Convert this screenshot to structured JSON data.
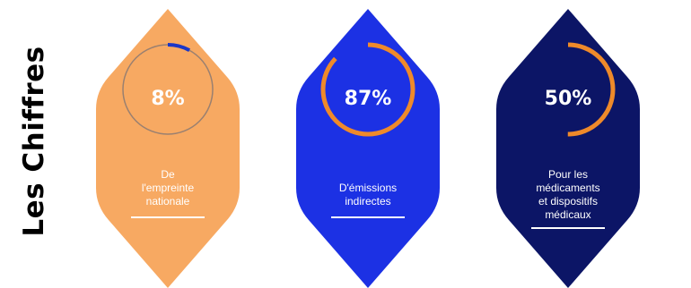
{
  "title": "Les Chiffres",
  "stats": [
    {
      "value": "8%",
      "fraction": 0.08,
      "label_lines": [
        "De",
        "l'empreinte",
        "nationale"
      ],
      "card_color": "#F7A962",
      "track_color": "#9a8070",
      "arc_color": "#1A36C8"
    },
    {
      "value": "87%",
      "fraction": 0.87,
      "label_lines": [
        "D'émissions",
        "indirectes"
      ],
      "card_color": "#1C31E4",
      "track_color": "#1C31E4",
      "arc_color": "#EF8A2A"
    },
    {
      "value": "50%",
      "fraction": 0.5,
      "label_lines": [
        "Pour les",
        "médicaments",
        "et dispositifs",
        "médicaux"
      ],
      "card_color": "#0C1566",
      "track_color": "#0C1566",
      "arc_color": "#EF8A2A"
    }
  ]
}
